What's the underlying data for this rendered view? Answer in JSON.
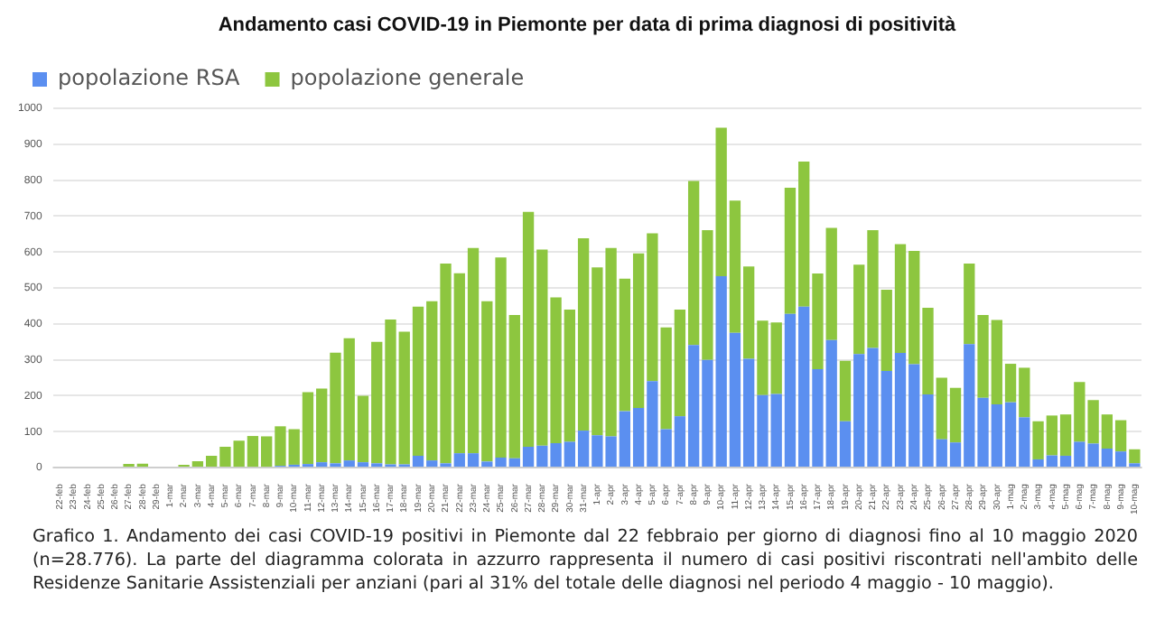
{
  "chart_data": {
    "type": "bar",
    "stacked": true,
    "title": "Andamento casi COVID-19 in Piemonte per data di prima diagnosi di positività",
    "categories": [
      "22-feb",
      "23-feb",
      "24-feb",
      "25-feb",
      "26-feb",
      "27-feb",
      "28-feb",
      "29-feb",
      "1-mar",
      "2-mar",
      "3-mar",
      "4-mar",
      "5-mar",
      "6-mar",
      "7-mar",
      "8-mar",
      "9-mar",
      "10-mar",
      "11-mar",
      "12-mar",
      "13-mar",
      "14-mar",
      "15-mar",
      "16-mar",
      "17-mar",
      "18-mar",
      "19-mar",
      "20-mar",
      "21-mar",
      "22-mar",
      "23-mar",
      "24-mar",
      "25-mar",
      "26-mar",
      "27-mar",
      "28-mar",
      "29-mar",
      "30-mar",
      "31-mar",
      "1-apr",
      "2-apr",
      "3-apr",
      "4-apr",
      "5-apr",
      "6-apr",
      "7-apr",
      "8-apr",
      "9-apr",
      "10-apr",
      "11-apr",
      "12-apr",
      "13-apr",
      "14-apr",
      "15-apr",
      "16-apr",
      "17-apr",
      "18-apr",
      "19-apr",
      "20-apr",
      "21-apr",
      "22-apr",
      "23-apr",
      "24-apr",
      "25-apr",
      "26-apr",
      "27-apr",
      "28-apr",
      "29-apr",
      "30-apr",
      "1-mag",
      "2-mag",
      "3-mag",
      "4-mag",
      "5-mag",
      "6-mag",
      "7-mag",
      "8-mag",
      "9-mag",
      "10-mag"
    ],
    "series": [
      {
        "name": "popolazione RSA",
        "color": "#5b8ff0",
        "values": [
          0,
          0,
          0,
          0,
          0,
          0,
          0,
          0,
          0,
          0,
          0,
          0,
          0,
          0,
          null,
          null,
          5,
          8,
          10,
          15,
          12,
          20,
          15,
          12,
          9,
          9,
          33,
          20,
          12,
          40,
          40,
          17,
          28,
          26,
          58,
          61,
          68,
          72,
          103,
          90,
          87,
          157,
          166,
          241,
          107,
          143,
          341,
          300,
          533,
          375,
          303,
          202,
          205,
          428,
          448,
          274,
          355,
          129,
          316,
          333,
          269,
          319,
          288,
          204,
          79,
          70,
          344,
          194,
          176,
          182,
          140,
          23,
          34,
          33,
          72,
          67,
          53,
          45,
          12
        ]
      },
      {
        "name": "popolazione generale",
        "color": "#8dc63f",
        "values": [
          0,
          0,
          0,
          0,
          0,
          10,
          11,
          3,
          null,
          8,
          18,
          33,
          58,
          75,
          88,
          87,
          110,
          99,
          200,
          205,
          308,
          340,
          185,
          338,
          403,
          369,
          415,
          443,
          556,
          501,
          571,
          446,
          557,
          399,
          654,
          546,
          406,
          368,
          535,
          467,
          524,
          369,
          430,
          411,
          283,
          297,
          457,
          361,
          413,
          368,
          257,
          207,
          199,
          351,
          404,
          266,
          312,
          168,
          249,
          328,
          226,
          303,
          315,
          241,
          171,
          152,
          224,
          231,
          235,
          107,
          138,
          106,
          111,
          115,
          166,
          121,
          95,
          87,
          39
        ]
      }
    ],
    "ylim": [
      0,
      1000
    ],
    "yticks": [
      0,
      100,
      200,
      300,
      400,
      500,
      600,
      700,
      800,
      900,
      1000
    ],
    "grid": "y",
    "legend": "top left",
    "annotations": [
      "Grafico 1. Andamento dei casi COVID-19 positivi in Piemonte dal 22 febbraio per giorno di diagnosi fino al 10 maggio 2020 (n=28.776). La parte del diagramma colorata in azzurro rappresenta il numero di casi positivi riscontrati nell'ambito delle Residenze Sanitarie Assistenziali per anziani (pari al 31% del totale delle diagnosi nel periodo 4 maggio - 10 maggio)."
    ]
  }
}
